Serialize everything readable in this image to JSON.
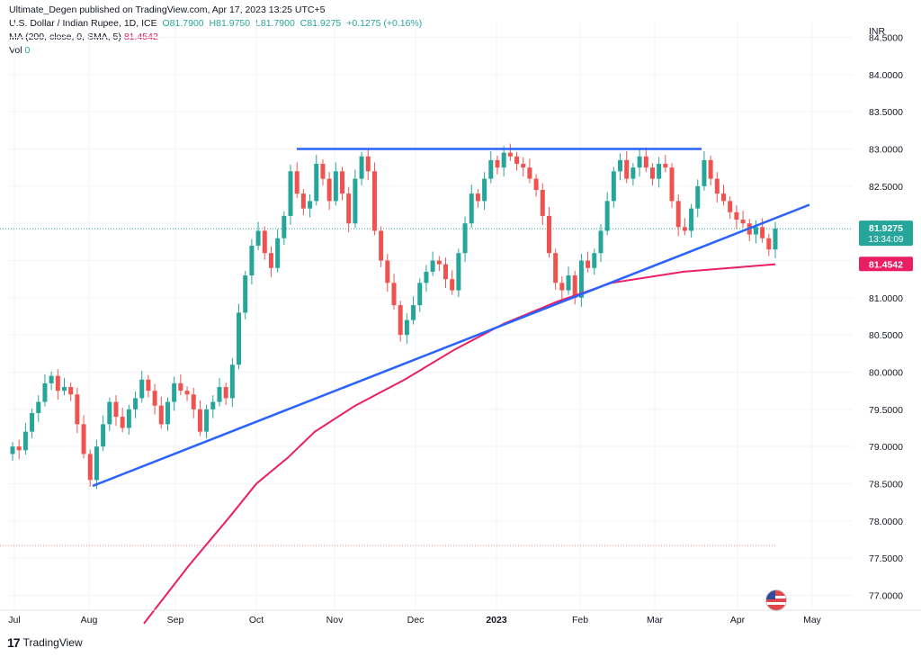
{
  "publisher": "Ultimate_Degen published on TradingView.com, Apr 17, 2023 13:25 UTC+5",
  "symbol_line": "U.S. Dollar / Indian Rupee, 1D, ICE",
  "ohlc": {
    "o": "O81.7900",
    "h": "H81.9750",
    "l": "L81.7900",
    "c": "C81.9275",
    "chg": "+0.1275 (+0.16%)"
  },
  "ma_label": "MA (200, close, 0, SMA, 5)",
  "ma_value": "81.4542",
  "vol_label": "Vol",
  "vol_value": "0",
  "currency": "INR",
  "footer_brand": "TradingView",
  "price_tag": {
    "value": "81.9275",
    "countdown": "13:34:09"
  },
  "ma_tag": "81.4542",
  "colors": {
    "up": "#26a69a",
    "down": "#ef5350",
    "ma": "#e91e63",
    "trend": "#2962ff",
    "grid": "#f0f3fa"
  },
  "chart_data": {
    "type": "candlestick",
    "yticks": [
      "84.5000",
      "84.0000",
      "83.5000",
      "83.0000",
      "82.5000",
      "82.0000",
      "81.5000",
      "81.0000",
      "80.5000",
      "80.0000",
      "79.5000",
      "79.0000",
      "78.5000",
      "78.0000",
      "77.5000",
      "77.0000"
    ],
    "ylim": [
      76.8,
      84.7
    ],
    "xticks": [
      "Jul",
      "Aug",
      "Sep",
      "Oct",
      "Nov",
      "Dec",
      "2023",
      "Feb",
      "Mar",
      "Apr",
      "May"
    ],
    "resistance": {
      "from": [
        "Oct 17",
        83.0
      ],
      "to": [
        "Mar 20",
        83.0
      ]
    },
    "support": {
      "from": [
        "Aug 1",
        78.47
      ],
      "to": [
        "Apr 27",
        82.25
      ]
    },
    "ma200": [
      [
        77.05,
        76.62
      ],
      [
        77.5,
        77.4
      ],
      [
        78.0,
        78.05
      ],
      [
        78.5,
        78.5
      ],
      [
        79.0,
        78.85
      ],
      [
        79.5,
        79.2
      ],
      [
        80.0,
        79.55
      ],
      [
        80.5,
        79.9
      ],
      [
        81.0,
        80.3
      ],
      [
        81.5,
        80.65
      ],
      [
        82.0,
        80.95
      ],
      [
        82.5,
        81.2
      ],
      [
        83.0,
        81.35
      ],
      [
        83.2,
        81.45
      ]
    ],
    "closes": [
      79.0,
      78.95,
      79.2,
      79.45,
      79.6,
      79.85,
      79.95,
      79.75,
      79.8,
      79.7,
      79.3,
      78.9,
      78.55,
      79.0,
      79.3,
      79.6,
      79.4,
      79.25,
      79.5,
      79.65,
      79.9,
      79.75,
      79.55,
      79.3,
      79.6,
      79.85,
      79.75,
      79.7,
      79.5,
      79.2,
      79.5,
      79.6,
      79.8,
      79.65,
      80.1,
      80.8,
      81.3,
      81.7,
      81.9,
      81.6,
      81.4,
      81.8,
      82.1,
      82.7,
      82.4,
      82.2,
      82.3,
      82.8,
      82.6,
      82.3,
      82.7,
      82.4,
      82.0,
      82.6,
      82.9,
      82.7,
      81.9,
      81.5,
      81.2,
      80.9,
      80.5,
      80.7,
      80.9,
      81.2,
      81.35,
      81.5,
      81.45,
      81.25,
      81.1,
      81.6,
      82.0,
      82.4,
      82.3,
      82.6,
      82.85,
      82.75,
      82.95,
      82.9,
      82.8,
      82.75,
      82.6,
      82.45,
      82.1,
      81.6,
      81.2,
      81.1,
      81.3,
      81.0,
      81.5,
      81.4,
      81.6,
      81.9,
      82.3,
      82.7,
      82.85,
      82.6,
      82.75,
      82.9,
      82.75,
      82.6,
      82.8,
      82.75,
      82.3,
      81.95,
      81.9,
      82.2,
      82.5,
      82.85,
      82.6,
      82.4,
      82.3,
      82.15,
      82.05,
      82.0,
      81.85,
      81.95,
      81.8,
      81.65,
      81.93
    ]
  }
}
